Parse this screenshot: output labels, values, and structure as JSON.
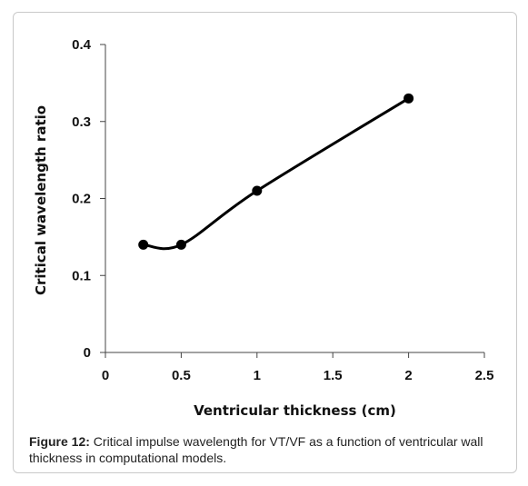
{
  "chart_data": {
    "type": "line",
    "title": "",
    "xlabel": "Ventricular thickness (cm)",
    "ylabel": "Critical wavelength ratio",
    "xlim": [
      0,
      2.5
    ],
    "ylim": [
      0,
      0.4
    ],
    "xticks": [
      "0",
      "0.5",
      "1",
      "1.5",
      "2",
      "2.5"
    ],
    "yticks": [
      "0",
      "0.1",
      "0.2",
      "0.3",
      "0.4"
    ],
    "series": [
      {
        "x": [
          0.25,
          0.5,
          1,
          2
        ],
        "y": [
          0.14,
          0.14,
          0.21,
          0.33
        ]
      }
    ],
    "line_style": "smoothed",
    "marker": "filled-circle",
    "grid": false,
    "colors": {
      "line": "#000000",
      "axis": "#444444"
    }
  },
  "caption": {
    "label": "Figure 12:",
    "text": " Critical impulse wavelength for VT/VF as a function of ventricular wall thickness in computational models."
  }
}
